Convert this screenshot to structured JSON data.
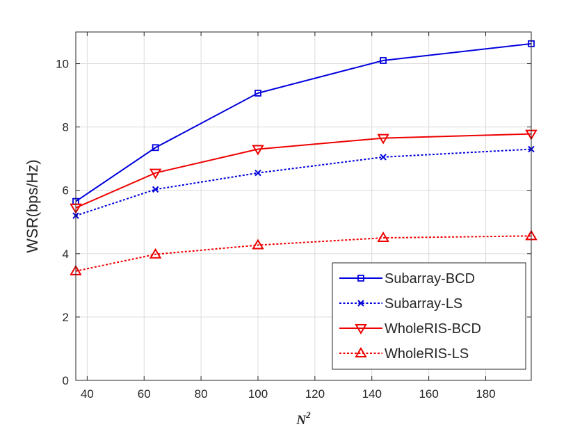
{
  "chart_data": {
    "type": "line",
    "title": "",
    "xlabel_base": "N",
    "xlabel_sup": "2",
    "ylabel": "WSR(bps/Hz)",
    "xlim": [
      36,
      196
    ],
    "ylim": [
      0,
      11
    ],
    "xticks": [
      40,
      60,
      80,
      100,
      120,
      140,
      160,
      180
    ],
    "yticks": [
      0,
      2,
      4,
      6,
      8,
      10
    ],
    "grid": true,
    "legend_position": "bottom-right",
    "x": [
      36,
      64,
      100,
      144,
      196
    ],
    "series": [
      {
        "name": "Subarray-BCD",
        "color": "#0000dd",
        "dash": "solid",
        "marker": "square",
        "values": [
          5.65,
          7.35,
          9.07,
          10.1,
          10.63
        ]
      },
      {
        "name": "Subarray-LS",
        "color": "#0000dd",
        "dash": "dotted",
        "marker": "x",
        "values": [
          5.2,
          6.03,
          6.55,
          7.05,
          7.3
        ]
      },
      {
        "name": "WholeRIS-BCD",
        "color": "#ee0000",
        "dash": "solid",
        "marker": "triangle-down",
        "values": [
          5.45,
          6.55,
          7.3,
          7.65,
          7.78
        ]
      },
      {
        "name": "WholeRIS-LS",
        "color": "#ee0000",
        "dash": "dotted",
        "marker": "triangle-up",
        "values": [
          3.45,
          3.98,
          4.27,
          4.5,
          4.56
        ]
      }
    ]
  }
}
